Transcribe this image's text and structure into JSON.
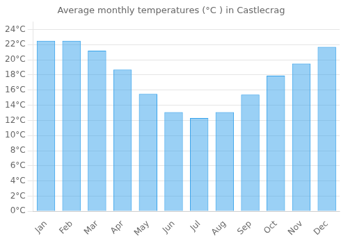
{
  "chart_data": {
    "type": "bar",
    "title": "Average monthly temperatures (°C ) in Castlecrag",
    "categories": [
      "Jan",
      "Feb",
      "Mar",
      "Apr",
      "May",
      "Jun",
      "Jul",
      "Aug",
      "Sep",
      "Oct",
      "Nov",
      "Dec"
    ],
    "values": [
      22.5,
      22.5,
      21.2,
      18.7,
      15.5,
      13.1,
      12.3,
      13.1,
      15.4,
      17.9,
      19.5,
      21.7
    ],
    "ylim": [
      0,
      25
    ],
    "yticks": [
      {
        "value": 0,
        "label": "0°C"
      },
      {
        "value": 2,
        "label": "2°C"
      },
      {
        "value": 4,
        "label": "4°C"
      },
      {
        "value": 6,
        "label": "6°C"
      },
      {
        "value": 8,
        "label": "8°C"
      },
      {
        "value": 10,
        "label": "10°C"
      },
      {
        "value": 12,
        "label": "12°C"
      },
      {
        "value": 14,
        "label": "14°C"
      },
      {
        "value": 16,
        "label": "16°C"
      },
      {
        "value": 18,
        "label": "18°C"
      },
      {
        "value": 20,
        "label": "20°C"
      },
      {
        "value": 22,
        "label": "22°C"
      },
      {
        "value": 24,
        "label": "24°C"
      }
    ],
    "grid": true
  }
}
